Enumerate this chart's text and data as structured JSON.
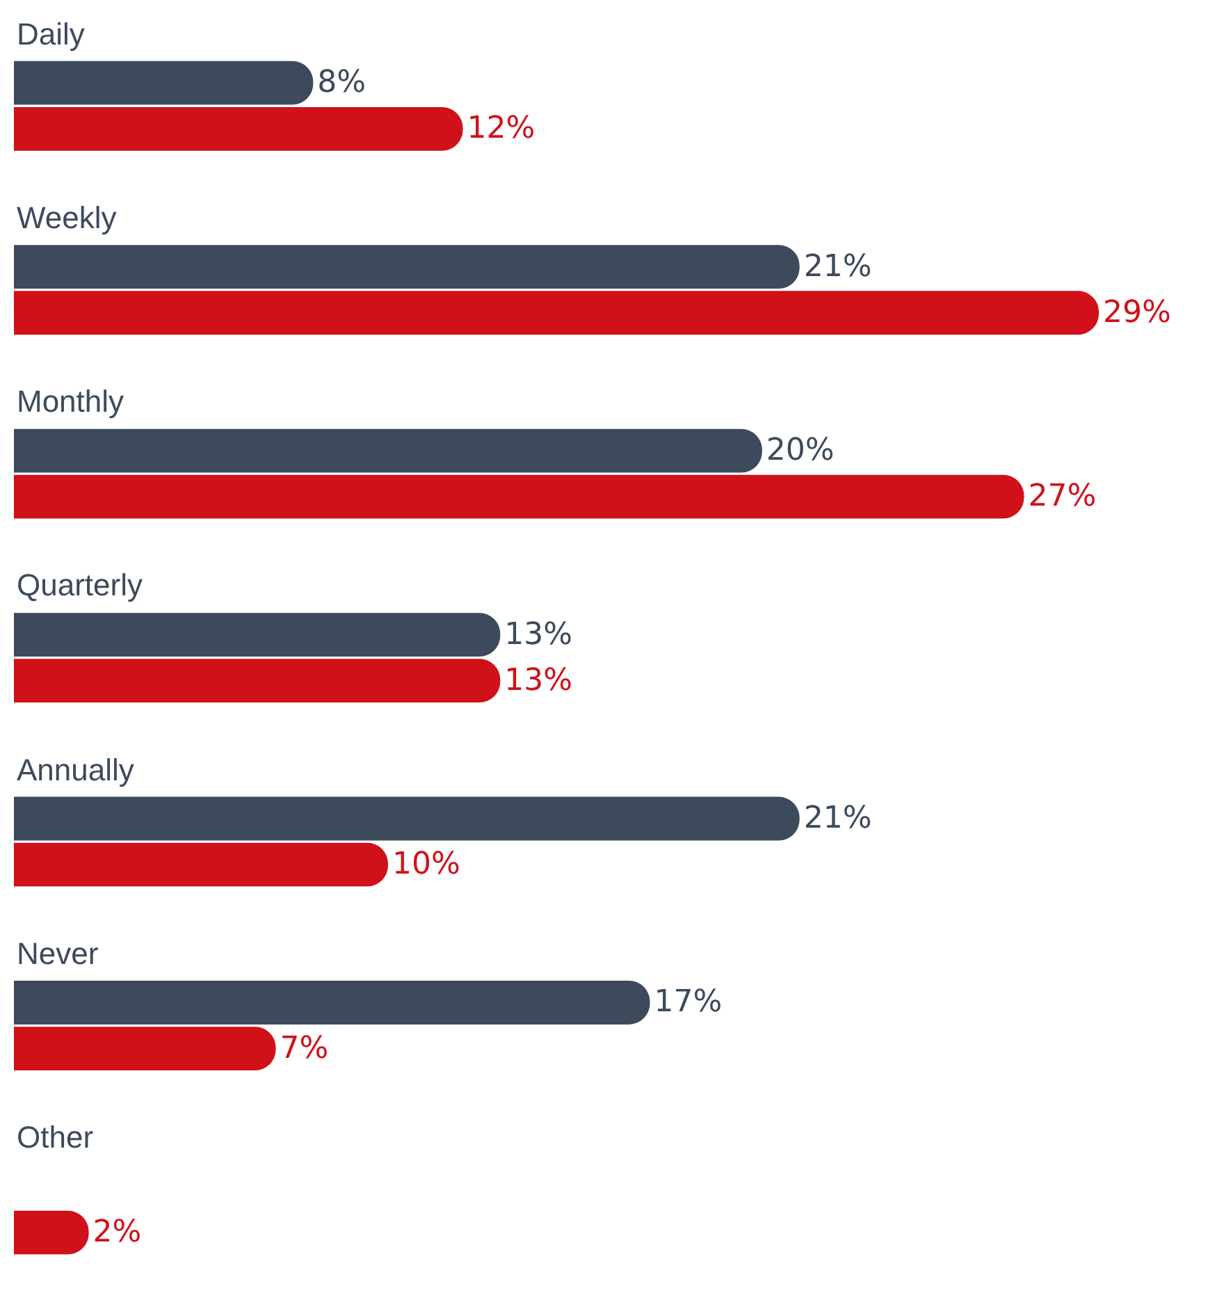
{
  "chart_data": {
    "type": "bar",
    "orientation": "horizontal",
    "categories": [
      "Daily",
      "Weekly",
      "Monthly",
      "Quarterly",
      "Annually",
      "Never",
      "Other"
    ],
    "series": [
      {
        "color": "#3d4a5c",
        "values": [
          8,
          21,
          20,
          13,
          21,
          17,
          null
        ],
        "value_labels": [
          "8%",
          "21%",
          "20%",
          "13%",
          "21%",
          "17%",
          null
        ]
      },
      {
        "color": "#d01119",
        "values": [
          12,
          29,
          27,
          13,
          10,
          7,
          2
        ],
        "value_labels": [
          "12%",
          "29%",
          "27%",
          "13%",
          "10%",
          "7%",
          "2%"
        ]
      }
    ],
    "xlim": [
      0,
      29
    ],
    "tick_labels": false
  }
}
